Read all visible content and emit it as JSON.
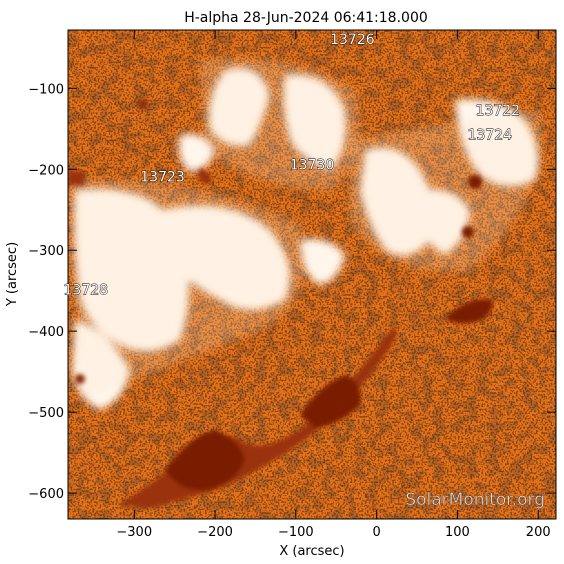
{
  "title": "H-alpha 28-Jun-2024 06:41:18.000",
  "xlabel": "X (arcsec)",
  "ylabel": "Y (arcsec)",
  "watermark": "SolarMonitor.org",
  "colors": {
    "background": "#ffffff",
    "axis": "#000000",
    "map_orange": "#e8731d",
    "map_dark": "#7a1e05",
    "map_light": "#fbe2c6",
    "plage": "#ffffff"
  },
  "axes": {
    "x_ticks": [
      -300,
      -200,
      -100,
      0,
      100,
      200
    ],
    "y_ticks": [
      -100,
      -200,
      -300,
      -400,
      -500,
      -600
    ],
    "xlim": [
      -382,
      222
    ],
    "ylim": [
      -632,
      -28
    ]
  },
  "regions": [
    {
      "label": "13726",
      "x": -30,
      "y": -45
    },
    {
      "label": "13722",
      "x": 150,
      "y": -133
    },
    {
      "label": "13724",
      "x": 140,
      "y": -163
    },
    {
      "label": "13730",
      "x": -80,
      "y": -200
    },
    {
      "label": "13723",
      "x": -265,
      "y": -215
    },
    {
      "label": "13728",
      "x": -360,
      "y": -355
    }
  ]
}
